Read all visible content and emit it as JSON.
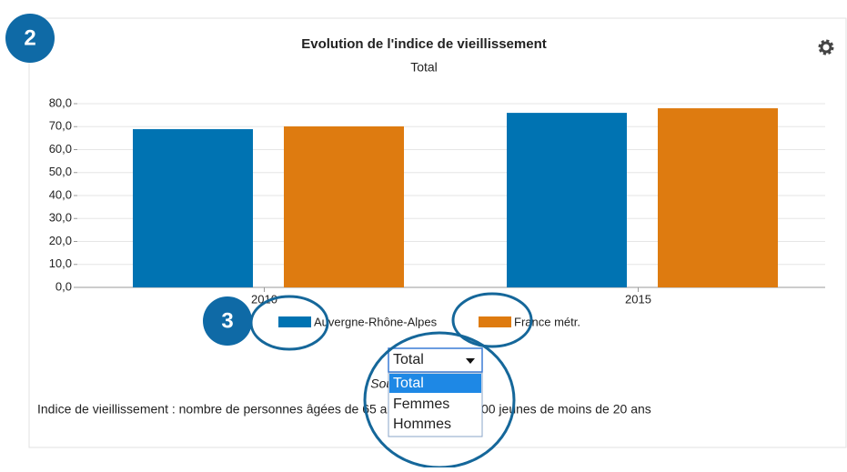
{
  "badges": [
    "2",
    "3"
  ],
  "chart_data": {
    "type": "bar",
    "title": "Evolution de l'indice de vieillissement",
    "subtitle": "Total",
    "categories": [
      "2010",
      "2015"
    ],
    "series": [
      {
        "name": "Auvergne-Rhône-Alpes",
        "color": "#0073b2",
        "values": [
          68.9,
          76.0
        ]
      },
      {
        "name": "France métr.",
        "color": "#de7b10",
        "values": [
          70.1,
          78.0
        ]
      }
    ],
    "ylim": [
      0,
      80
    ],
    "yticks": [
      {
        "value": 0,
        "label": "0,0"
      },
      {
        "value": 10,
        "label": "10,0"
      },
      {
        "value": 20,
        "label": "20,0"
      },
      {
        "value": 30,
        "label": "30,0"
      },
      {
        "value": 40,
        "label": "40,0"
      },
      {
        "value": 50,
        "label": "50,0"
      },
      {
        "value": 60,
        "label": "60,0"
      },
      {
        "value": 70,
        "label": "70,0"
      },
      {
        "value": 80,
        "label": "80,0"
      }
    ],
    "grid": true
  },
  "source": "Source : Insee, RP",
  "footnote": "Indice de vieillissement : nombre de personnes âgées de 65 ans et plus pour 100 jeunes de moins de 20 ans",
  "dropdown": {
    "selected": "Total",
    "options": [
      "Total",
      "Femmes",
      "Hommes"
    ]
  }
}
